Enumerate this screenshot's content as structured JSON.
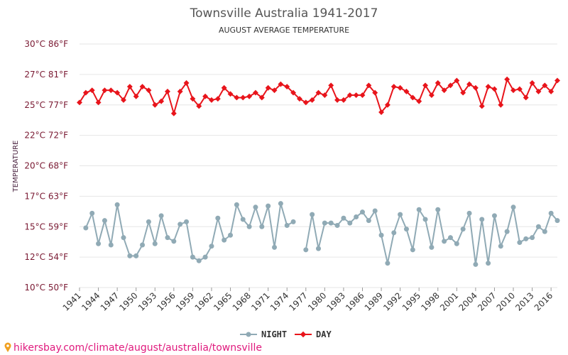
{
  "chart_data": {
    "type": "line",
    "title": "Townsville Australia 1941-2017",
    "subtitle": "AUGUST AVERAGE TEMPERATURE",
    "ylabel": "TEMPERATURE",
    "xlabel": "",
    "ylim": [
      10,
      30
    ],
    "yticks": [
      {
        "value": 10,
        "label": "10°C 50°F"
      },
      {
        "value": 12.5,
        "label": "12°C 54°F"
      },
      {
        "value": 15,
        "label": "15°C 59°F"
      },
      {
        "value": 17.5,
        "label": "17°C 63°F"
      },
      {
        "value": 20,
        "label": "20°C 68°F"
      },
      {
        "value": 22.5,
        "label": "22°C 72°F"
      },
      {
        "value": 25,
        "label": "25°C 77°F"
      },
      {
        "value": 27.5,
        "label": "27°C 81°F"
      },
      {
        "value": 30,
        "label": "30°C 86°F"
      }
    ],
    "xlim": [
      1941,
      2017
    ],
    "xticks": [
      "1941",
      "1944",
      "1947",
      "1950",
      "1953",
      "1956",
      "1959",
      "1962",
      "1965",
      "1968",
      "1971",
      "1974",
      "1977",
      "1980",
      "1983",
      "1986",
      "1989",
      "1992",
      "1995",
      "1998",
      "2001",
      "2004",
      "2007",
      "2010",
      "2013",
      "2016"
    ],
    "grid": true,
    "legend_position": "bottom-center",
    "series": [
      {
        "name": "NIGHT",
        "color": "#90aab5",
        "points": [
          [
            1942,
            14.9
          ],
          [
            1943,
            16.1
          ],
          [
            1944,
            13.6
          ],
          [
            1945,
            15.5
          ],
          [
            1946,
            13.5
          ],
          [
            1947,
            16.8
          ],
          [
            1948,
            14.1
          ],
          [
            1949,
            12.6
          ],
          [
            1950,
            12.6
          ],
          [
            1951,
            13.5
          ],
          [
            1952,
            15.4
          ],
          [
            1953,
            13.6
          ],
          [
            1954,
            15.9
          ],
          [
            1955,
            14.1
          ],
          [
            1956,
            13.8
          ],
          [
            1957,
            15.2
          ],
          [
            1958,
            15.4
          ],
          [
            1959,
            12.5
          ],
          [
            1960,
            12.2
          ],
          [
            1961,
            12.5
          ],
          [
            1962,
            13.4
          ],
          [
            1963,
            15.7
          ],
          [
            1964,
            13.9
          ],
          [
            1965,
            14.3
          ],
          [
            1966,
            16.8
          ],
          [
            1967,
            15.6
          ],
          [
            1968,
            15.0
          ],
          [
            1969,
            16.6
          ],
          [
            1970,
            15.0
          ],
          [
            1971,
            16.7
          ],
          [
            1972,
            13.3
          ],
          [
            1973,
            16.9
          ],
          [
            1974,
            15.1
          ],
          [
            1975,
            15.4
          ],
          null,
          [
            1977,
            13.1
          ],
          [
            1978,
            16.0
          ],
          [
            1979,
            13.2
          ],
          [
            1980,
            15.3
          ],
          [
            1981,
            15.3
          ],
          [
            1982,
            15.1
          ],
          [
            1983,
            15.7
          ],
          [
            1984,
            15.3
          ],
          [
            1985,
            15.8
          ],
          [
            1986,
            16.2
          ],
          [
            1987,
            15.5
          ],
          [
            1988,
            16.3
          ],
          [
            1989,
            14.3
          ],
          [
            1990,
            12.0
          ],
          [
            1991,
            14.5
          ],
          [
            1992,
            16.0
          ],
          [
            1993,
            14.8
          ],
          [
            1994,
            13.1
          ],
          [
            1995,
            16.4
          ],
          [
            1996,
            15.6
          ],
          [
            1997,
            13.3
          ],
          [
            1998,
            16.4
          ],
          [
            1999,
            13.8
          ],
          [
            2000,
            14.1
          ],
          [
            2001,
            13.6
          ],
          [
            2002,
            14.8
          ],
          [
            2003,
            16.1
          ],
          [
            2004,
            11.9
          ],
          [
            2005,
            15.6
          ],
          [
            2006,
            12.0
          ],
          [
            2007,
            15.9
          ],
          [
            2008,
            13.4
          ],
          [
            2009,
            14.6
          ],
          [
            2010,
            16.6
          ],
          [
            2011,
            13.7
          ],
          [
            2012,
            14.0
          ],
          [
            2013,
            14.1
          ],
          [
            2014,
            15.0
          ],
          [
            2015,
            14.6
          ],
          [
            2016,
            16.1
          ],
          [
            2017,
            15.5
          ]
        ]
      },
      {
        "name": "DAY",
        "color": "#e8141b",
        "points": [
          [
            1941,
            25.2
          ],
          [
            1942,
            26.0
          ],
          [
            1943,
            26.2
          ],
          [
            1944,
            25.2
          ],
          [
            1945,
            26.2
          ],
          [
            1946,
            26.2
          ],
          [
            1947,
            26.0
          ],
          [
            1948,
            25.4
          ],
          [
            1949,
            26.5
          ],
          [
            1950,
            25.7
          ],
          [
            1951,
            26.5
          ],
          [
            1952,
            26.2
          ],
          [
            1953,
            25.0
          ],
          [
            1954,
            25.3
          ],
          [
            1955,
            26.1
          ],
          [
            1956,
            24.3
          ],
          [
            1957,
            26.1
          ],
          [
            1958,
            26.8
          ],
          [
            1959,
            25.5
          ],
          [
            1960,
            24.9
          ],
          [
            1961,
            25.7
          ],
          [
            1962,
            25.4
          ],
          [
            1963,
            25.5
          ],
          [
            1964,
            26.4
          ],
          [
            1965,
            25.9
          ],
          [
            1966,
            25.6
          ],
          [
            1967,
            25.6
          ],
          [
            1968,
            25.7
          ],
          [
            1969,
            26.0
          ],
          [
            1970,
            25.6
          ],
          [
            1971,
            26.4
          ],
          [
            1972,
            26.2
          ],
          [
            1973,
            26.7
          ],
          [
            1974,
            26.5
          ],
          [
            1975,
            26.0
          ],
          [
            1976,
            25.5
          ],
          [
            1977,
            25.2
          ],
          [
            1978,
            25.4
          ],
          [
            1979,
            26.0
          ],
          [
            1980,
            25.8
          ],
          [
            1981,
            26.6
          ],
          [
            1982,
            25.4
          ],
          [
            1983,
            25.4
          ],
          [
            1984,
            25.8
          ],
          [
            1985,
            25.8
          ],
          [
            1986,
            25.8
          ],
          [
            1987,
            26.6
          ],
          [
            1988,
            26.0
          ],
          [
            1989,
            24.4
          ],
          [
            1990,
            25.0
          ],
          [
            1991,
            26.5
          ],
          [
            1992,
            26.4
          ],
          [
            1993,
            26.1
          ],
          [
            1994,
            25.6
          ],
          [
            1995,
            25.3
          ],
          [
            1996,
            26.6
          ],
          [
            1997,
            25.8
          ],
          [
            1998,
            26.8
          ],
          [
            1999,
            26.2
          ],
          [
            2000,
            26.6
          ],
          [
            2001,
            27.0
          ],
          [
            2002,
            26.0
          ],
          [
            2003,
            26.7
          ],
          [
            2004,
            26.4
          ],
          [
            2005,
            24.9
          ],
          [
            2006,
            26.5
          ],
          [
            2007,
            26.3
          ],
          [
            2008,
            25.0
          ],
          [
            2009,
            27.1
          ],
          [
            2010,
            26.2
          ],
          [
            2011,
            26.3
          ],
          [
            2012,
            25.6
          ],
          [
            2013,
            26.8
          ],
          [
            2014,
            26.1
          ],
          [
            2015,
            26.6
          ],
          [
            2016,
            26.1
          ],
          [
            2017,
            27.0
          ]
        ]
      }
    ]
  },
  "source_text": "hikersbay.com/climate/august/australia/townsville"
}
